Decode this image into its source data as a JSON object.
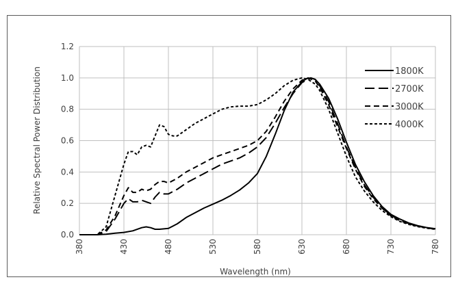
{
  "chart_data": {
    "type": "line",
    "title": "",
    "xlabel": "Wavelength (nm)",
    "ylabel": "Relative Spectral Power Distribution",
    "xlim": [
      380,
      780
    ],
    "ylim": [
      0,
      1.2
    ],
    "x_ticks": [
      380,
      430,
      480,
      530,
      580,
      630,
      680,
      730,
      780
    ],
    "y_ticks": [
      0.0,
      0.2,
      0.4,
      0.6,
      0.8,
      1.0,
      1.2
    ],
    "x_tick_labels": [
      "380",
      "430",
      "480",
      "530",
      "580",
      "630",
      "680",
      "730",
      "780"
    ],
    "y_tick_labels": [
      "0.0",
      "0.2",
      "0.4",
      "0.6",
      "0.8",
      "1.0",
      "1.2"
    ],
    "grid": true,
    "legend_position": "right",
    "series": [
      {
        "name": "1800K",
        "style": "solid",
        "points": [
          [
            380,
            0.0
          ],
          [
            400,
            0.0
          ],
          [
            410,
            0.003
          ],
          [
            420,
            0.01
          ],
          [
            430,
            0.015
          ],
          [
            440,
            0.025
          ],
          [
            450,
            0.045
          ],
          [
            455,
            0.05
          ],
          [
            460,
            0.045
          ],
          [
            465,
            0.035
          ],
          [
            470,
            0.035
          ],
          [
            480,
            0.04
          ],
          [
            490,
            0.07
          ],
          [
            500,
            0.11
          ],
          [
            510,
            0.14
          ],
          [
            520,
            0.17
          ],
          [
            530,
            0.195
          ],
          [
            540,
            0.22
          ],
          [
            550,
            0.25
          ],
          [
            560,
            0.285
          ],
          [
            570,
            0.33
          ],
          [
            580,
            0.39
          ],
          [
            590,
            0.5
          ],
          [
            600,
            0.64
          ],
          [
            610,
            0.79
          ],
          [
            620,
            0.91
          ],
          [
            630,
            0.975
          ],
          [
            635,
            0.995
          ],
          [
            640,
            1.0
          ],
          [
            645,
            0.99
          ],
          [
            650,
            0.96
          ],
          [
            660,
            0.87
          ],
          [
            670,
            0.74
          ],
          [
            680,
            0.59
          ],
          [
            690,
            0.45
          ],
          [
            700,
            0.34
          ],
          [
            710,
            0.25
          ],
          [
            720,
            0.18
          ],
          [
            730,
            0.13
          ],
          [
            740,
            0.1
          ],
          [
            750,
            0.075
          ],
          [
            760,
            0.058
          ],
          [
            770,
            0.046
          ],
          [
            780,
            0.038
          ]
        ]
      },
      {
        "name": "2700K",
        "style": "long-dash",
        "points": [
          [
            380,
            0.0
          ],
          [
            400,
            0.0
          ],
          [
            410,
            0.02
          ],
          [
            420,
            0.1
          ],
          [
            430,
            0.2
          ],
          [
            435,
            0.23
          ],
          [
            440,
            0.21
          ],
          [
            445,
            0.21
          ],
          [
            450,
            0.22
          ],
          [
            455,
            0.21
          ],
          [
            460,
            0.2
          ],
          [
            465,
            0.24
          ],
          [
            470,
            0.27
          ],
          [
            475,
            0.26
          ],
          [
            480,
            0.26
          ],
          [
            490,
            0.29
          ],
          [
            500,
            0.33
          ],
          [
            510,
            0.36
          ],
          [
            520,
            0.39
          ],
          [
            530,
            0.42
          ],
          [
            540,
            0.45
          ],
          [
            550,
            0.47
          ],
          [
            560,
            0.49
          ],
          [
            570,
            0.52
          ],
          [
            580,
            0.56
          ],
          [
            590,
            0.62
          ],
          [
            600,
            0.71
          ],
          [
            610,
            0.81
          ],
          [
            620,
            0.9
          ],
          [
            630,
            0.97
          ],
          [
            640,
            1.0
          ],
          [
            645,
            0.99
          ],
          [
            650,
            0.95
          ],
          [
            660,
            0.85
          ],
          [
            670,
            0.71
          ],
          [
            680,
            0.56
          ],
          [
            690,
            0.43
          ],
          [
            700,
            0.32
          ],
          [
            710,
            0.24
          ],
          [
            720,
            0.17
          ],
          [
            730,
            0.125
          ],
          [
            740,
            0.095
          ],
          [
            750,
            0.072
          ],
          [
            760,
            0.056
          ],
          [
            770,
            0.045
          ],
          [
            780,
            0.037
          ]
        ]
      },
      {
        "name": "3000K",
        "style": "dash",
        "points": [
          [
            380,
            0.0
          ],
          [
            400,
            0.0
          ],
          [
            410,
            0.03
          ],
          [
            420,
            0.12
          ],
          [
            430,
            0.25
          ],
          [
            435,
            0.3
          ],
          [
            440,
            0.27
          ],
          [
            445,
            0.27
          ],
          [
            450,
            0.29
          ],
          [
            455,
            0.28
          ],
          [
            460,
            0.29
          ],
          [
            465,
            0.32
          ],
          [
            470,
            0.34
          ],
          [
            475,
            0.34
          ],
          [
            480,
            0.33
          ],
          [
            490,
            0.36
          ],
          [
            500,
            0.4
          ],
          [
            510,
            0.43
          ],
          [
            520,
            0.46
          ],
          [
            530,
            0.49
          ],
          [
            540,
            0.51
          ],
          [
            550,
            0.53
          ],
          [
            560,
            0.55
          ],
          [
            570,
            0.57
          ],
          [
            580,
            0.6
          ],
          [
            590,
            0.66
          ],
          [
            600,
            0.75
          ],
          [
            610,
            0.85
          ],
          [
            620,
            0.93
          ],
          [
            630,
            0.985
          ],
          [
            637,
            1.0
          ],
          [
            645,
            0.98
          ],
          [
            650,
            0.94
          ],
          [
            660,
            0.83
          ],
          [
            670,
            0.69
          ],
          [
            680,
            0.55
          ],
          [
            690,
            0.42
          ],
          [
            700,
            0.31
          ],
          [
            710,
            0.23
          ],
          [
            720,
            0.17
          ],
          [
            730,
            0.12
          ],
          [
            740,
            0.09
          ],
          [
            750,
            0.07
          ],
          [
            760,
            0.055
          ],
          [
            770,
            0.044
          ],
          [
            780,
            0.036
          ]
        ]
      },
      {
        "name": "4000K",
        "style": "short-dash",
        "points": [
          [
            380,
            0.0
          ],
          [
            400,
            0.0
          ],
          [
            410,
            0.05
          ],
          [
            420,
            0.25
          ],
          [
            430,
            0.45
          ],
          [
            435,
            0.53
          ],
          [
            440,
            0.53
          ],
          [
            445,
            0.51
          ],
          [
            450,
            0.56
          ],
          [
            455,
            0.57
          ],
          [
            460,
            0.56
          ],
          [
            465,
            0.63
          ],
          [
            470,
            0.7
          ],
          [
            475,
            0.69
          ],
          [
            480,
            0.64
          ],
          [
            485,
            0.63
          ],
          [
            490,
            0.63
          ],
          [
            500,
            0.67
          ],
          [
            510,
            0.71
          ],
          [
            520,
            0.74
          ],
          [
            530,
            0.77
          ],
          [
            540,
            0.8
          ],
          [
            550,
            0.815
          ],
          [
            560,
            0.82
          ],
          [
            570,
            0.82
          ],
          [
            580,
            0.83
          ],
          [
            590,
            0.86
          ],
          [
            600,
            0.9
          ],
          [
            610,
            0.95
          ],
          [
            620,
            0.985
          ],
          [
            630,
            1.0
          ],
          [
            637,
            0.99
          ],
          [
            645,
            0.96
          ],
          [
            650,
            0.92
          ],
          [
            660,
            0.8
          ],
          [
            670,
            0.65
          ],
          [
            680,
            0.5
          ],
          [
            690,
            0.37
          ],
          [
            700,
            0.28
          ],
          [
            710,
            0.21
          ],
          [
            720,
            0.155
          ],
          [
            730,
            0.115
          ],
          [
            740,
            0.085
          ],
          [
            750,
            0.066
          ],
          [
            760,
            0.052
          ],
          [
            770,
            0.042
          ],
          [
            780,
            0.035
          ]
        ]
      }
    ]
  },
  "colors": {
    "series": "#000000",
    "grid": "#bfbfbf",
    "axis_text": "#404040"
  }
}
